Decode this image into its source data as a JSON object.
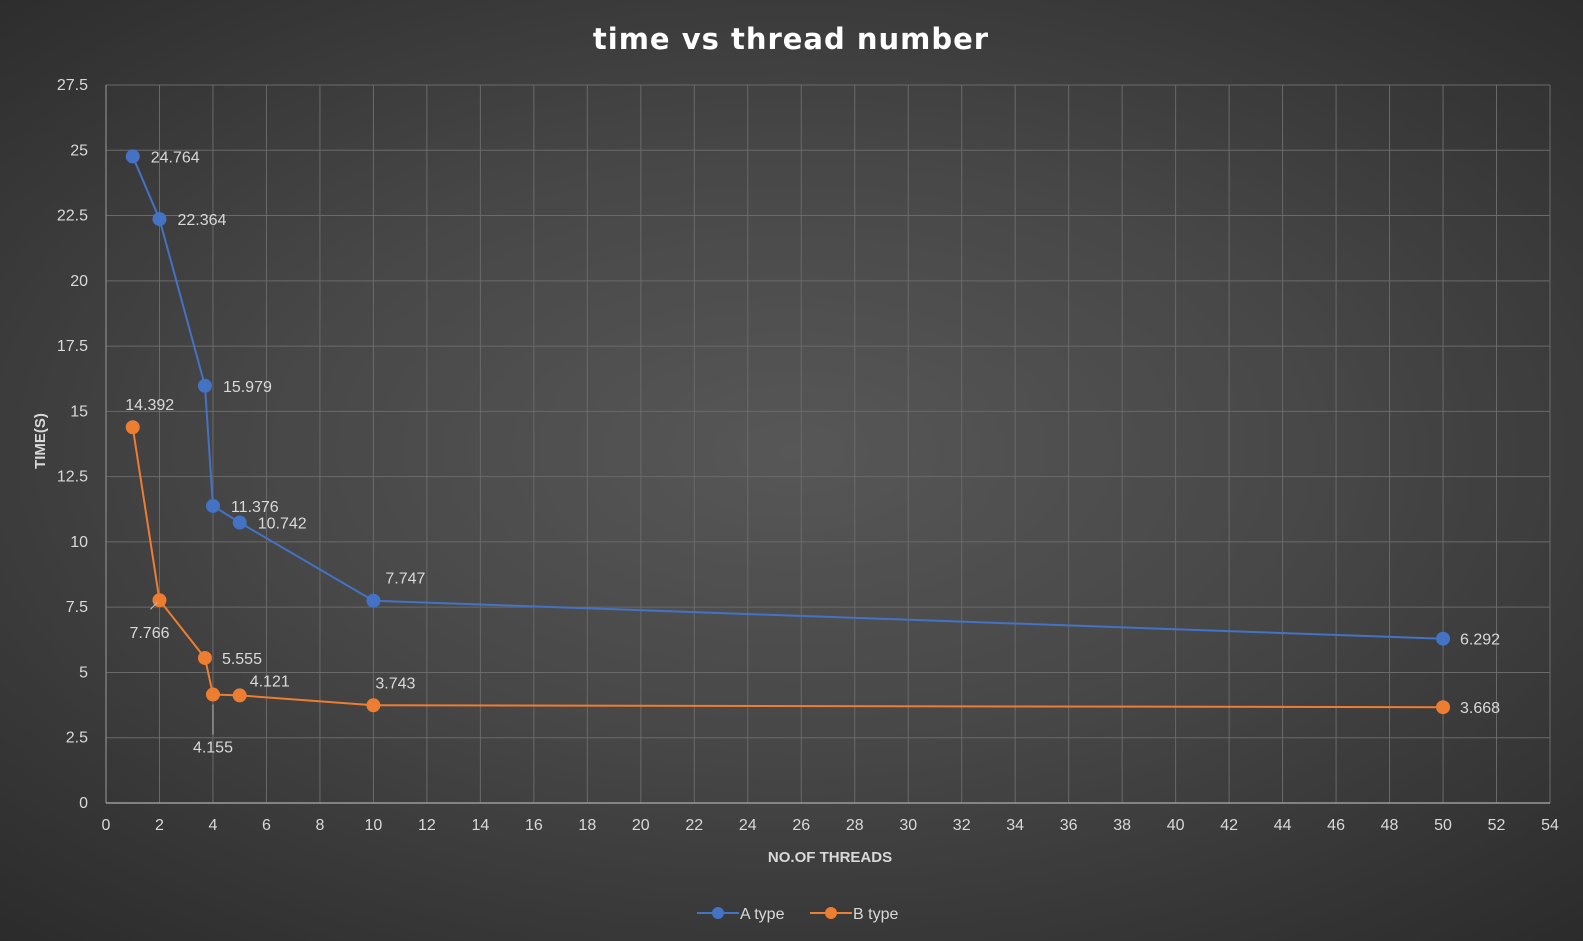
{
  "chart_data": {
    "type": "line",
    "title": "time vs thread number",
    "xlabel": "NO.OF THREADS",
    "ylabel": "TIME(S)",
    "xlim": [
      0,
      54
    ],
    "ylim": [
      0,
      27.5
    ],
    "x_ticks": [
      "0",
      "2",
      "4",
      "6",
      "8",
      "10",
      "12",
      "14",
      "16",
      "18",
      "20",
      "22",
      "24",
      "26",
      "28",
      "30",
      "32",
      "34",
      "36",
      "38",
      "40",
      "42",
      "44",
      "46",
      "48",
      "50",
      "52",
      "54"
    ],
    "y_ticks": [
      "0",
      "2.5",
      "5",
      "7.5",
      "10",
      "12.5",
      "15",
      "17.5",
      "20",
      "22.5",
      "25",
      "27.5"
    ],
    "grid": true,
    "legend_position": "bottom",
    "series": [
      {
        "name": "A type",
        "color": "#4472c4",
        "points": [
          {
            "x": 1,
            "y": 24.764,
            "label": "24.764"
          },
          {
            "x": 2,
            "y": 22.364,
            "label": "22.364"
          },
          {
            "x": 3.7,
            "y": 15.979,
            "label": "15.979"
          },
          {
            "x": 4,
            "y": 11.376,
            "label": "11.376"
          },
          {
            "x": 5,
            "y": 10.742,
            "label": "10.742"
          },
          {
            "x": 10,
            "y": 7.747,
            "label": "7.747"
          },
          {
            "x": 50,
            "y": 6.292,
            "label": "6.292"
          }
        ]
      },
      {
        "name": "B type",
        "color": "#ed7d31",
        "points": [
          {
            "x": 1,
            "y": 14.392,
            "label": "14.392"
          },
          {
            "x": 2,
            "y": 7.766,
            "label": "7.766"
          },
          {
            "x": 3.7,
            "y": 5.555,
            "label": "5.555"
          },
          {
            "x": 4,
            "y": 4.155,
            "label": "4.155"
          },
          {
            "x": 5,
            "y": 4.121,
            "label": "4.121"
          },
          {
            "x": 10,
            "y": 3.743,
            "label": "3.743"
          },
          {
            "x": 50,
            "y": 3.668,
            "label": "3.668"
          }
        ]
      }
    ]
  }
}
